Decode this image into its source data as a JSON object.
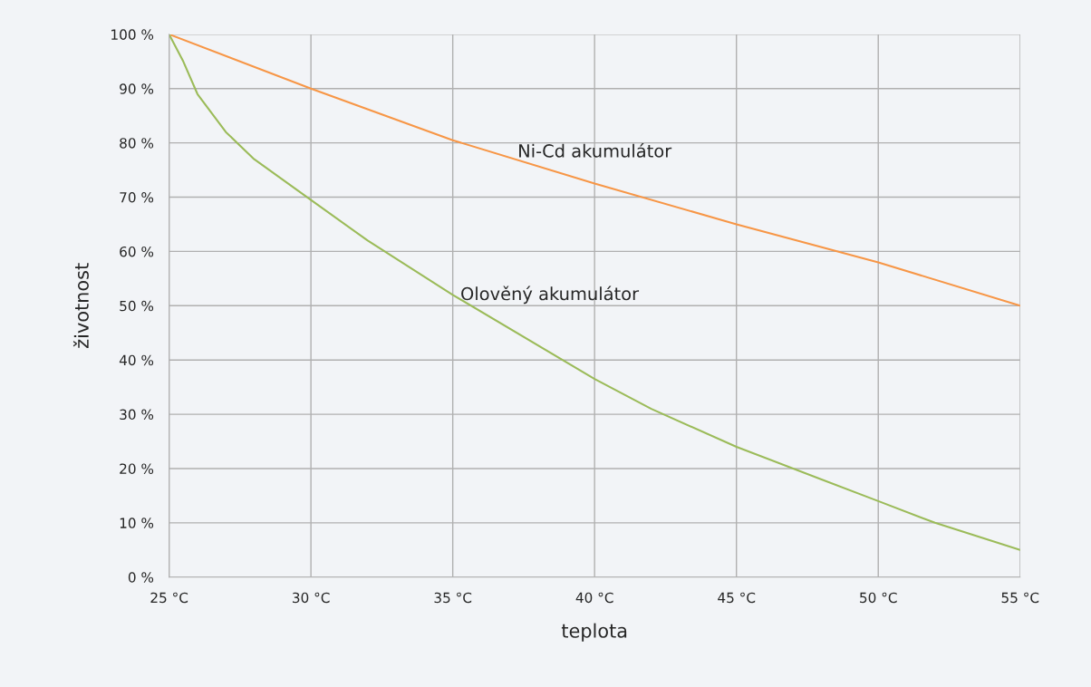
{
  "chart_data": {
    "type": "line",
    "xlabel": "teplota",
    "ylabel": "životnost",
    "xlim": [
      25,
      55
    ],
    "ylim": [
      0,
      100
    ],
    "xticks": [
      {
        "value": 25,
        "label": "25 °C"
      },
      {
        "value": 30,
        "label": "30 °C"
      },
      {
        "value": 35,
        "label": "35 °C"
      },
      {
        "value": 40,
        "label": "40 °C"
      },
      {
        "value": 45,
        "label": "45 °C"
      },
      {
        "value": 50,
        "label": "50 °C"
      },
      {
        "value": 55,
        "label": "55 °C"
      }
    ],
    "yticks": [
      {
        "value": 0,
        "label": "0 %"
      },
      {
        "value": 10,
        "label": "10 %"
      },
      {
        "value": 20,
        "label": "20 %"
      },
      {
        "value": 30,
        "label": "30 %"
      },
      {
        "value": 40,
        "label": "40 %"
      },
      {
        "value": 50,
        "label": "50 %"
      },
      {
        "value": 60,
        "label": "60 %"
      },
      {
        "value": 70,
        "label": "70 %"
      },
      {
        "value": 80,
        "label": "80 %"
      },
      {
        "value": 90,
        "label": "90 %"
      },
      {
        "value": 100,
        "label": "100 %"
      }
    ],
    "grid": true,
    "marker": "none",
    "line_style": "solid",
    "series": [
      {
        "name": "Ni-Cd akumulátor",
        "color": "#f79646",
        "x": [
          25,
          30,
          35,
          40,
          45,
          50,
          55
        ],
        "values": [
          100,
          90,
          80.5,
          72.5,
          65,
          58,
          50
        ]
      },
      {
        "name": "Olověný akumulátor",
        "color": "#9bbb59",
        "x": [
          25,
          25.5,
          26,
          27,
          28,
          30,
          32,
          35,
          40,
          42,
          45,
          48,
          50,
          52,
          55
        ],
        "values": [
          100,
          95,
          89,
          82,
          77,
          69.5,
          62,
          52,
          36.5,
          31,
          24,
          18,
          14,
          10,
          5
        ]
      }
    ]
  }
}
